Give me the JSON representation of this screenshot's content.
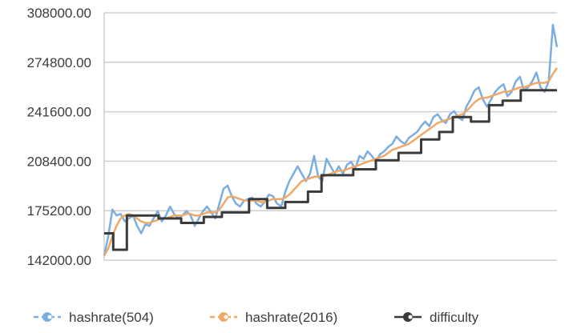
{
  "chart_data": {
    "type": "line",
    "ylim": [
      142000,
      308000
    ],
    "y_ticks": [
      "142000.00",
      "175200.00",
      "208400.00",
      "241600.00",
      "274800.00",
      "308000.00"
    ],
    "y_tick_values": [
      142000,
      175200,
      208400,
      241600,
      274800,
      308000
    ],
    "grid": true,
    "legend_position": "bottom",
    "series": [
      {
        "name": "hashrate(504)",
        "color": "#7aaee0",
        "values": [
          145000,
          158000,
          176000,
          172000,
          173000,
          168000,
          170000,
          172000,
          165000,
          160000,
          166000,
          165000,
          170000,
          175000,
          168000,
          172000,
          178000,
          173000,
          170000,
          172000,
          175000,
          172000,
          165000,
          170000,
          175000,
          178000,
          174000,
          170000,
          180000,
          190000,
          192000,
          185000,
          180000,
          178000,
          182000,
          183000,
          184000,
          180000,
          178000,
          181000,
          186000,
          185000,
          180000,
          178000,
          188000,
          195000,
          200000,
          205000,
          200000,
          195000,
          200000,
          212000,
          198000,
          195000,
          210000,
          205000,
          200000,
          205000,
          200000,
          206000,
          208000,
          203000,
          212000,
          210000,
          215000,
          212000,
          208000,
          213000,
          215000,
          218000,
          220000,
          225000,
          222000,
          220000,
          224000,
          226000,
          228000,
          232000,
          235000,
          232000,
          238000,
          240000,
          236000,
          234000,
          240000,
          242000,
          238000,
          236000,
          245000,
          250000,
          256000,
          258000,
          250000,
          245000,
          250000,
          255000,
          258000,
          260000,
          252000,
          255000,
          262000,
          265000,
          256000,
          258000,
          262000,
          268000,
          258000,
          255000,
          262000,
          300000,
          285000
        ]
      },
      {
        "name": "hashrate(2016)",
        "color": "#f0a868",
        "values": [
          145000,
          150000,
          158000,
          165000,
          170000,
          172000,
          173000,
          172000,
          170000,
          168000,
          167000,
          167000,
          168000,
          169000,
          170000,
          170000,
          171000,
          172000,
          172000,
          172000,
          173000,
          173000,
          172000,
          172000,
          173000,
          174000,
          174000,
          174000,
          176000,
          180000,
          184000,
          185000,
          184000,
          183000,
          182000,
          182000,
          182000,
          182000,
          181000,
          181000,
          182000,
          183000,
          183000,
          183000,
          184000,
          186000,
          189000,
          192000,
          195000,
          196000,
          197000,
          198000,
          198000,
          198000,
          199000,
          200000,
          201000,
          202000,
          202000,
          203000,
          204000,
          205000,
          206000,
          207000,
          208000,
          209000,
          210000,
          211000,
          212000,
          214000,
          216000,
          217000,
          218000,
          219000,
          220000,
          222000,
          224000,
          226000,
          228000,
          230000,
          232000,
          234000,
          235000,
          236000,
          237000,
          238000,
          239000,
          240000,
          242000,
          245000,
          248000,
          250000,
          251000,
          251000,
          252000,
          253000,
          254000,
          255000,
          255000,
          256000,
          257000,
          258000,
          258000,
          259000,
          260000,
          261000,
          261000,
          261000,
          262000,
          267000,
          271000
        ]
      },
      {
        "name": "difficulty",
        "color": "#3a3a3a",
        "step": true,
        "segments": [
          [
            0.0,
            0.02,
            160000
          ],
          [
            0.02,
            0.05,
            149000
          ],
          [
            0.05,
            0.12,
            172000
          ],
          [
            0.12,
            0.17,
            170000
          ],
          [
            0.17,
            0.22,
            167000
          ],
          [
            0.22,
            0.26,
            171000
          ],
          [
            0.26,
            0.32,
            174000
          ],
          [
            0.32,
            0.36,
            183000
          ],
          [
            0.36,
            0.4,
            177000
          ],
          [
            0.4,
            0.45,
            181000
          ],
          [
            0.45,
            0.48,
            188000
          ],
          [
            0.48,
            0.55,
            199000
          ],
          [
            0.55,
            0.6,
            203000
          ],
          [
            0.6,
            0.65,
            209000
          ],
          [
            0.65,
            0.7,
            214000
          ],
          [
            0.7,
            0.74,
            223000
          ],
          [
            0.74,
            0.77,
            228000
          ],
          [
            0.77,
            0.81,
            238000
          ],
          [
            0.81,
            0.85,
            235000
          ],
          [
            0.85,
            0.88,
            246000
          ],
          [
            0.88,
            0.92,
            249000
          ],
          [
            0.92,
            1.0,
            256000
          ]
        ]
      }
    ]
  }
}
